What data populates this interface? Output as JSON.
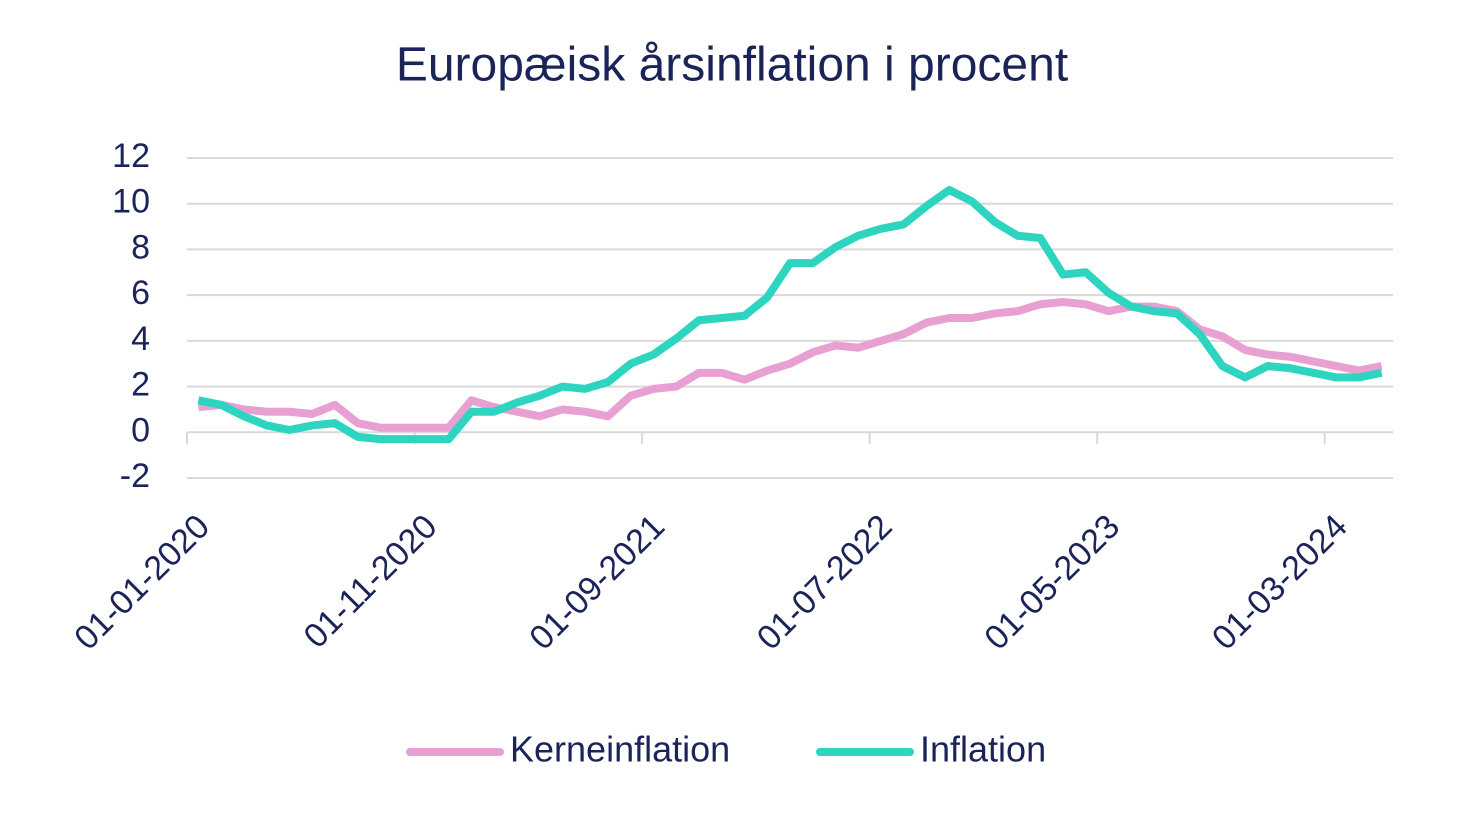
{
  "chart_data": {
    "type": "line",
    "title": "Europæisk årsinflation i procent",
    "categories": [
      "01-01-2020",
      null,
      null,
      null,
      null,
      null,
      null,
      null,
      null,
      null,
      "01-11-2020",
      null,
      null,
      null,
      null,
      null,
      null,
      null,
      null,
      null,
      "01-09-2021",
      null,
      null,
      null,
      null,
      null,
      null,
      null,
      null,
      null,
      "01-07-2022",
      null,
      null,
      null,
      null,
      null,
      null,
      null,
      null,
      null,
      "01-05-2023",
      null,
      null,
      null,
      null,
      null,
      null,
      null,
      null,
      null,
      "01-03-2024",
      null,
      null
    ],
    "series": [
      {
        "name": "Kerneinflation",
        "color": "#e89fd2",
        "values": [
          1.1,
          1.2,
          1.0,
          0.9,
          0.9,
          0.8,
          1.2,
          0.4,
          0.2,
          0.2,
          0.2,
          0.2,
          1.4,
          1.1,
          0.9,
          0.7,
          1.0,
          0.9,
          0.7,
          1.6,
          1.9,
          2.0,
          2.6,
          2.6,
          2.3,
          2.7,
          3.0,
          3.5,
          3.8,
          3.7,
          4.0,
          4.3,
          4.8,
          5.0,
          5.0,
          5.2,
          5.3,
          5.6,
          5.7,
          5.6,
          5.3,
          5.5,
          5.5,
          5.3,
          4.5,
          4.2,
          3.6,
          3.4,
          3.3,
          3.1,
          2.9,
          2.7,
          2.9
        ]
      },
      {
        "name": "Inflation",
        "color": "#2dd4c0",
        "values": [
          1.4,
          1.2,
          0.7,
          0.3,
          0.1,
          0.3,
          0.4,
          -0.2,
          -0.3,
          -0.3,
          -0.3,
          -0.3,
          0.9,
          0.9,
          1.3,
          1.6,
          2.0,
          1.9,
          2.2,
          3.0,
          3.4,
          4.1,
          4.9,
          5.0,
          5.1,
          5.9,
          7.4,
          7.4,
          8.1,
          8.6,
          8.9,
          9.1,
          9.9,
          10.6,
          10.1,
          9.2,
          8.6,
          8.5,
          6.9,
          7.0,
          6.1,
          5.5,
          5.3,
          5.2,
          4.3,
          2.9,
          2.4,
          2.9,
          2.8,
          2.6,
          2.4,
          2.4,
          2.6
        ]
      }
    ],
    "ylim": [
      -2,
      12
    ],
    "yticks": [
      -2,
      0,
      2,
      4,
      6,
      8,
      10,
      12
    ],
    "grid": true,
    "legend": "bottom"
  }
}
